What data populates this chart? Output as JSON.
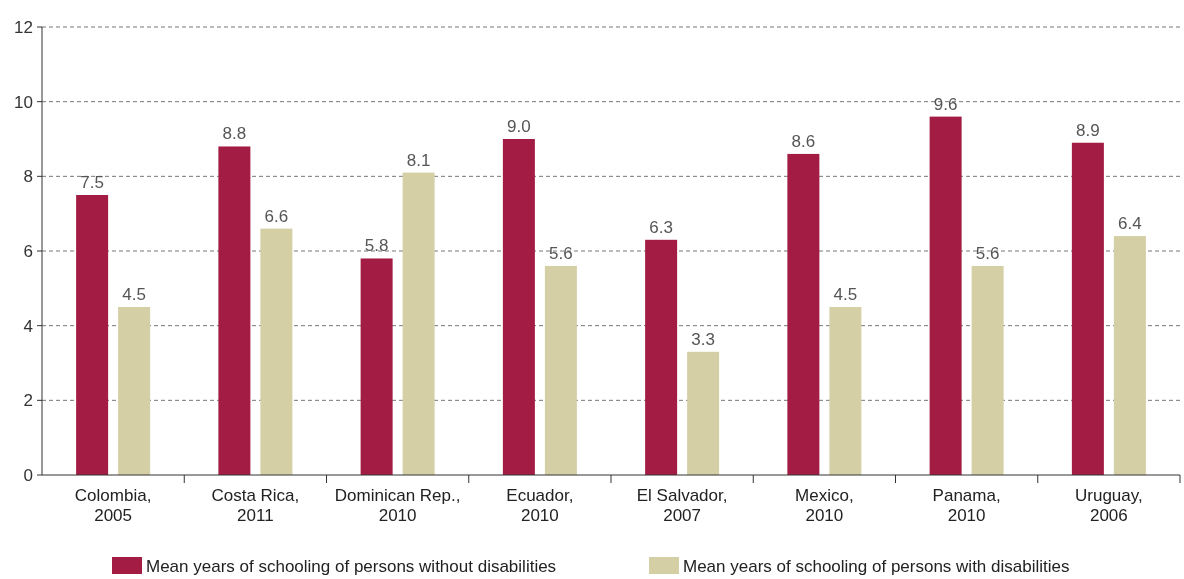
{
  "chart_data": {
    "type": "bar",
    "categories": [
      "Colombia, 2005",
      "Costa Rica, 2011",
      "Dominican Rep., 2010",
      "Ecuador, 2010",
      "El Salvador, 2007",
      "Mexico, 2010",
      "Panama, 2010",
      "Uruguay, 2006"
    ],
    "series": [
      {
        "name": "Mean years of schooling of persons without disabilities",
        "color": "#a31c44",
        "values": [
          7.5,
          8.8,
          5.8,
          9.0,
          6.3,
          8.6,
          9.6,
          8.9
        ],
        "value_labels": [
          "7.5",
          "8.8",
          "5.8",
          "9.0",
          "6.3",
          "8.6",
          "9.6",
          "8.9"
        ]
      },
      {
        "name": "Mean years of schooling of persons with disabilities",
        "color": "#d4cfa4",
        "values": [
          4.5,
          6.6,
          8.1,
          5.6,
          3.3,
          4.5,
          5.6,
          6.4
        ],
        "value_labels": [
          "4.5",
          "6.6",
          "8.1",
          "5.6",
          "3.3",
          "4.5",
          "5.6",
          "6.4"
        ]
      }
    ],
    "ylim": [
      0,
      12
    ],
    "yticks": [
      0,
      2,
      4,
      6,
      8,
      10,
      12
    ],
    "grid": "y",
    "legend": "bottom"
  }
}
